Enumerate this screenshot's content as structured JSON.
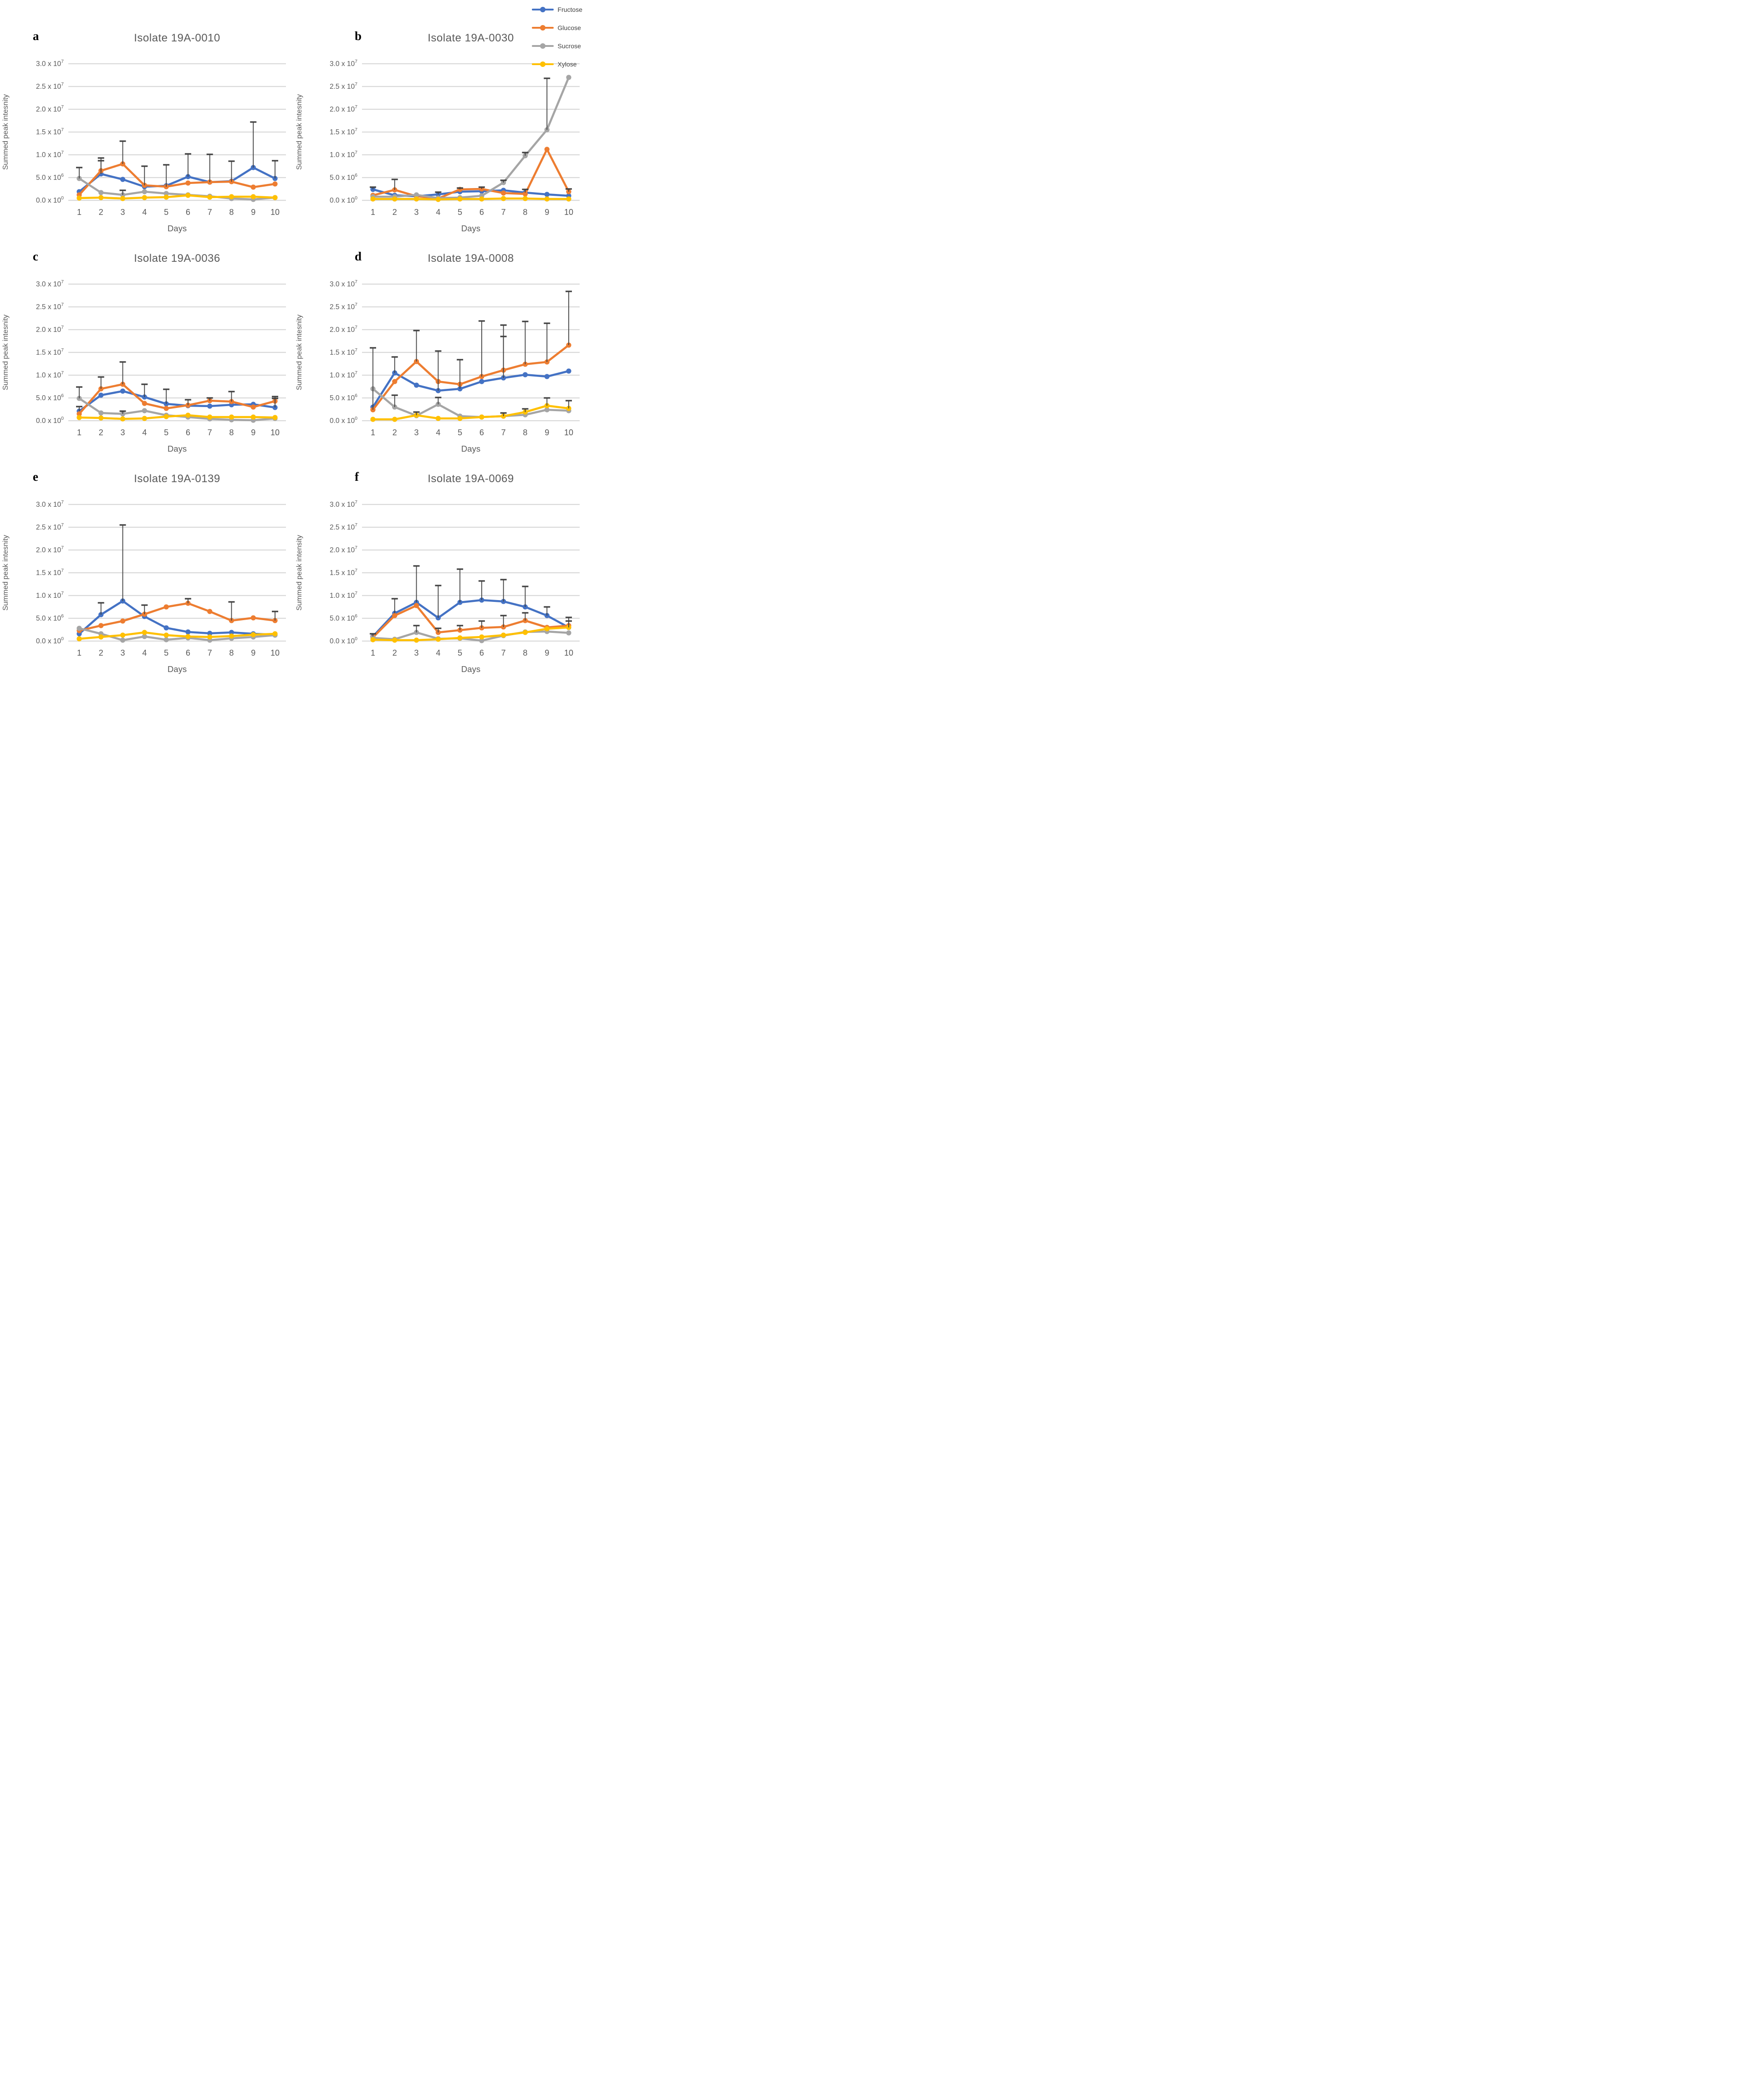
{
  "colors": {
    "fructose": "#4472C4",
    "glucose": "#ED7D31",
    "sucrose": "#A5A5A5",
    "xylose": "#FFC000",
    "error_bar": "#404040",
    "grid": "#D9D9D9",
    "text": "#595959",
    "legend_text": "#404040",
    "letter": "#000000"
  },
  "legend": {
    "items": [
      {
        "label": "Fructose",
        "color_key": "fructose"
      },
      {
        "label": "Glucose",
        "color_key": "glucose"
      },
      {
        "label": "Sucrose",
        "color_key": "sucrose"
      },
      {
        "label": "Xylose",
        "color_key": "xylose"
      }
    ]
  },
  "axis": {
    "xlabel": "Days",
    "x_ticks": [
      1,
      2,
      3,
      4,
      5,
      6,
      7,
      8,
      9,
      10
    ],
    "ylim": [
      0,
      30000000.0
    ],
    "grid": true,
    "y_ticks": [
      {
        "mantissa": "3.0 x 10",
        "exp": "7",
        "value": 30000000.0
      },
      {
        "mantissa": "2.5 x 10",
        "exp": "7",
        "value": 25000000.0
      },
      {
        "mantissa": "2.0 x 10",
        "exp": "7",
        "value": 20000000.0
      },
      {
        "mantissa": "1.5 x 10",
        "exp": "7",
        "value": 15000000.0
      },
      {
        "mantissa": "1.0 x 10",
        "exp": "7",
        "value": 10000000.0
      },
      {
        "mantissa": "5.0 x 10",
        "exp": "6",
        "value": 5000000.0
      },
      {
        "mantissa": "0.0 x 10",
        "exp": "0",
        "value": 0
      }
    ]
  },
  "chart_data": [
    {
      "type": "line",
      "letter": "a",
      "title": "Isolate 19A-0010",
      "ylabel": "Summed peak intesnity",
      "xlabel": "Days",
      "x": [
        1,
        2,
        3,
        4,
        5,
        6,
        7,
        8,
        9,
        10
      ],
      "series": [
        {
          "name": "Fructose",
          "color_key": "fructose",
          "values": [
            1900000.0,
            5800000.0,
            4600000.0,
            3000000.0,
            3200000.0,
            5200000.0,
            4000000.0,
            4200000.0,
            7200000.0,
            4800000.0
          ],
          "err_up": [
            null,
            9300000.0,
            null,
            null,
            null,
            10200000.0,
            null,
            null,
            17200000.0,
            8700000.0
          ]
        },
        {
          "name": "Glucose",
          "color_key": "glucose",
          "values": [
            1200000.0,
            6500000.0,
            8000000.0,
            3300000.0,
            3000000.0,
            3800000.0,
            4000000.0,
            4100000.0,
            2900000.0,
            3600000.0
          ],
          "err_up": [
            null,
            8700000.0,
            13000000.0,
            7500000.0,
            7800000.0,
            null,
            10100000.0,
            8600000.0,
            null,
            null
          ]
        },
        {
          "name": "Sucrose",
          "color_key": "sucrose",
          "values": [
            4800000.0,
            1700000.0,
            1200000.0,
            1900000.0,
            1500000.0,
            1200000.0,
            900000.0,
            400000.0,
            200000.0,
            600000.0
          ],
          "err_up": [
            7200000.0,
            null,
            2200000.0,
            null,
            null,
            null,
            null,
            null,
            null,
            null
          ]
        },
        {
          "name": "Xylose",
          "color_key": "xylose",
          "values": [
            500000.0,
            600000.0,
            400000.0,
            600000.0,
            700000.0,
            1100000.0,
            700000.0,
            800000.0,
            800000.0,
            600000.0
          ],
          "err_up": [
            null,
            null,
            null,
            null,
            null,
            null,
            null,
            null,
            null,
            null
          ]
        }
      ]
    },
    {
      "type": "line",
      "letter": "b",
      "title": "Isolate 19A-0030",
      "ylabel": "Summed peak intesnity",
      "xlabel": "Days",
      "x": [
        1,
        2,
        3,
        4,
        5,
        6,
        7,
        8,
        9,
        10
      ],
      "series": [
        {
          "name": "Fructose",
          "color_key": "fructose",
          "values": [
            2400000.0,
            1100000.0,
            900000.0,
            1300000.0,
            1900000.0,
            2000000.0,
            2200000.0,
            1700000.0,
            1300000.0,
            1000000.0
          ],
          "err_up": [
            2900000.0,
            null,
            null,
            1800000.0,
            null,
            null,
            null,
            2400000.0,
            null,
            null
          ]
        },
        {
          "name": "Glucose",
          "color_key": "glucose",
          "values": [
            1100000.0,
            2300000.0,
            900000.0,
            400000.0,
            2400000.0,
            2500000.0,
            1600000.0,
            1400000.0,
            11200000.0,
            1900000.0
          ],
          "err_up": [
            null,
            4600000.0,
            null,
            null,
            2700000.0,
            2900000.0,
            null,
            null,
            null,
            2500000.0
          ]
        },
        {
          "name": "Sucrose",
          "color_key": "sucrose",
          "values": [
            800000.0,
            800000.0,
            1200000.0,
            500000.0,
            600000.0,
            1000000.0,
            3900000.0,
            9800000.0,
            15500000.0,
            27000000.0
          ],
          "err_up": [
            null,
            null,
            null,
            null,
            null,
            null,
            4400000.0,
            10500000.0,
            26800000.0,
            null
          ]
        },
        {
          "name": "Xylose",
          "color_key": "xylose",
          "values": [
            300000.0,
            300000.0,
            300000.0,
            200000.0,
            300000.0,
            300000.0,
            400000.0,
            400000.0,
            300000.0,
            300000.0
          ],
          "err_up": [
            null,
            null,
            null,
            null,
            null,
            null,
            null,
            null,
            null,
            null
          ]
        }
      ]
    },
    {
      "type": "line",
      "letter": "c",
      "title": "Isolate 19A-0036",
      "ylabel": "Summed peak intesnity",
      "xlabel": "Days",
      "x": [
        1,
        2,
        3,
        4,
        5,
        6,
        7,
        8,
        9,
        10
      ],
      "series": [
        {
          "name": "Fructose",
          "color_key": "fructose",
          "values": [
            2100000.0,
            5600000.0,
            6500000.0,
            5200000.0,
            3700000.0,
            3300000.0,
            3200000.0,
            3500000.0,
            3600000.0,
            2900000.0
          ],
          "err_up": [
            3100000.0,
            null,
            null,
            8000000.0,
            6900000.0,
            null,
            null,
            null,
            null,
            4900000.0
          ]
        },
        {
          "name": "Glucose",
          "color_key": "glucose",
          "values": [
            1500000.0,
            7000000.0,
            8000000.0,
            3800000.0,
            2700000.0,
            3400000.0,
            4400000.0,
            4200000.0,
            3000000.0,
            4300000.0
          ],
          "err_up": [
            null,
            9600000.0,
            12900000.0,
            null,
            null,
            4600000.0,
            5000000.0,
            6400000.0,
            null,
            5300000.0
          ]
        },
        {
          "name": "Sucrose",
          "color_key": "sucrose",
          "values": [
            4900000.0,
            1700000.0,
            1500000.0,
            2200000.0,
            1200000.0,
            800000.0,
            400000.0,
            200000.0,
            100000.0,
            500000.0
          ],
          "err_up": [
            7400000.0,
            null,
            2100000.0,
            null,
            null,
            null,
            null,
            null,
            null,
            null
          ]
        },
        {
          "name": "Xylose",
          "color_key": "xylose",
          "values": [
            700000.0,
            600000.0,
            400000.0,
            500000.0,
            900000.0,
            1200000.0,
            800000.0,
            800000.0,
            800000.0,
            700000.0
          ],
          "err_up": [
            null,
            null,
            null,
            null,
            null,
            null,
            null,
            null,
            null,
            null
          ]
        }
      ]
    },
    {
      "type": "line",
      "letter": "d",
      "title": "Isolate 19A-0008",
      "ylabel": "Summed peak intesnity",
      "xlabel": "Days",
      "x": [
        1,
        2,
        3,
        4,
        5,
        6,
        7,
        8,
        9,
        10
      ],
      "series": [
        {
          "name": "Fructose",
          "color_key": "fructose",
          "values": [
            3000000.0,
            10500000.0,
            7800000.0,
            6600000.0,
            7000000.0,
            8600000.0,
            9400000.0,
            10100000.0,
            9700000.0,
            10900000.0
          ],
          "err_up": [
            null,
            14000000.0,
            null,
            15300000.0,
            13400000.0,
            null,
            21000000.0,
            null,
            null,
            null
          ]
        },
        {
          "name": "Glucose",
          "color_key": "glucose",
          "values": [
            2400000.0,
            8600000.0,
            13000000.0,
            8600000.0,
            8000000.0,
            9700000.0,
            11100000.0,
            12400000.0,
            12900000.0,
            16600000.0
          ],
          "err_up": [
            16000000.0,
            null,
            19800000.0,
            null,
            null,
            21900000.0,
            18500000.0,
            21800000.0,
            21400000.0,
            28400000.0
          ]
        },
        {
          "name": "Sucrose",
          "color_key": "sucrose",
          "values": [
            7000000.0,
            3000000.0,
            1100000.0,
            3600000.0,
            1000000.0,
            800000.0,
            1000000.0,
            1300000.0,
            2400000.0,
            2200000.0
          ],
          "err_up": [
            null,
            5600000.0,
            null,
            5100000.0,
            null,
            null,
            null,
            null,
            null,
            null
          ]
        },
        {
          "name": "Xylose",
          "color_key": "xylose",
          "values": [
            300000.0,
            300000.0,
            1200000.0,
            500000.0,
            500000.0,
            800000.0,
            1000000.0,
            1900000.0,
            3300000.0,
            2700000.0
          ],
          "err_up": [
            null,
            null,
            1900000.0,
            null,
            null,
            null,
            1700000.0,
            2600000.0,
            5000000.0,
            4400000.0
          ]
        }
      ]
    },
    {
      "type": "line",
      "letter": "e",
      "title": "Isolate 19A-0139",
      "ylabel": "Summed peak intesnity",
      "xlabel": "Days",
      "x": [
        1,
        2,
        3,
        4,
        5,
        6,
        7,
        8,
        9,
        10
      ],
      "series": [
        {
          "name": "Fructose",
          "color_key": "fructose",
          "values": [
            1600000.0,
            5800000.0,
            8800000.0,
            5400000.0,
            2900000.0,
            2000000.0,
            1700000.0,
            1900000.0,
            1600000.0,
            1400000.0
          ],
          "err_up": [
            null,
            8400000.0,
            25500000.0,
            null,
            null,
            null,
            null,
            null,
            null,
            null
          ]
        },
        {
          "name": "Glucose",
          "color_key": "glucose",
          "values": [
            2300000.0,
            3400000.0,
            4400000.0,
            5900000.0,
            7500000.0,
            8300000.0,
            6500000.0,
            4500000.0,
            5100000.0,
            4500000.0
          ],
          "err_up": [
            null,
            null,
            null,
            7900000.0,
            null,
            9300000.0,
            null,
            8600000.0,
            null,
            6500000.0
          ]
        },
        {
          "name": "Sucrose",
          "color_key": "sucrose",
          "values": [
            2800000.0,
            1600000.0,
            200000.0,
            1000000.0,
            300000.0,
            700000.0,
            200000.0,
            600000.0,
            900000.0,
            1300000.0
          ],
          "err_up": [
            null,
            null,
            null,
            null,
            null,
            null,
            null,
            null,
            null,
            null
          ]
        },
        {
          "name": "Xylose",
          "color_key": "xylose",
          "values": [
            500000.0,
            900000.0,
            1300000.0,
            1900000.0,
            1300000.0,
            1000000.0,
            900000.0,
            1100000.0,
            1400000.0,
            1600000.0
          ],
          "err_up": [
            null,
            null,
            null,
            null,
            null,
            null,
            null,
            null,
            null,
            null
          ]
        }
      ]
    },
    {
      "type": "line",
      "letter": "f",
      "title": "Isolate 19A-0069",
      "ylabel": "Summed peak intensity",
      "xlabel": "Days",
      "x": [
        1,
        2,
        3,
        4,
        5,
        6,
        7,
        8,
        9,
        10
      ],
      "series": [
        {
          "name": "Fructose",
          "color_key": "fructose",
          "values": [
            1000000.0,
            6100000.0,
            8500000.0,
            5100000.0,
            8500000.0,
            9000000.0,
            8700000.0,
            7500000.0,
            5600000.0,
            3000000.0
          ],
          "err_up": [
            1600000.0,
            9300000.0,
            16500000.0,
            12200000.0,
            15800000.0,
            13200000.0,
            13500000.0,
            12000000.0,
            7500000.0,
            5200000.0
          ]
        },
        {
          "name": "Glucose",
          "color_key": "glucose",
          "values": [
            800000.0,
            5600000.0,
            7800000.0,
            1900000.0,
            2400000.0,
            2900000.0,
            3100000.0,
            4500000.0,
            3000000.0,
            3400000.0
          ],
          "err_up": [
            null,
            null,
            null,
            2800000.0,
            3400000.0,
            4400000.0,
            5600000.0,
            6200000.0,
            null,
            4400000.0
          ]
        },
        {
          "name": "Sucrose",
          "color_key": "sucrose",
          "values": [
            700000.0,
            400000.0,
            1900000.0,
            500000.0,
            600000.0,
            100000.0,
            1200000.0,
            2000000.0,
            2100000.0,
            1800000.0
          ],
          "err_up": [
            null,
            null,
            3400000.0,
            null,
            null,
            null,
            null,
            null,
            null,
            null
          ]
        },
        {
          "name": "Xylose",
          "color_key": "xylose",
          "values": [
            300000.0,
            200000.0,
            200000.0,
            400000.0,
            700000.0,
            900000.0,
            1300000.0,
            1900000.0,
            2700000.0,
            3000000.0
          ],
          "err_up": [
            null,
            null,
            null,
            null,
            null,
            null,
            null,
            null,
            null,
            null
          ]
        }
      ]
    }
  ]
}
